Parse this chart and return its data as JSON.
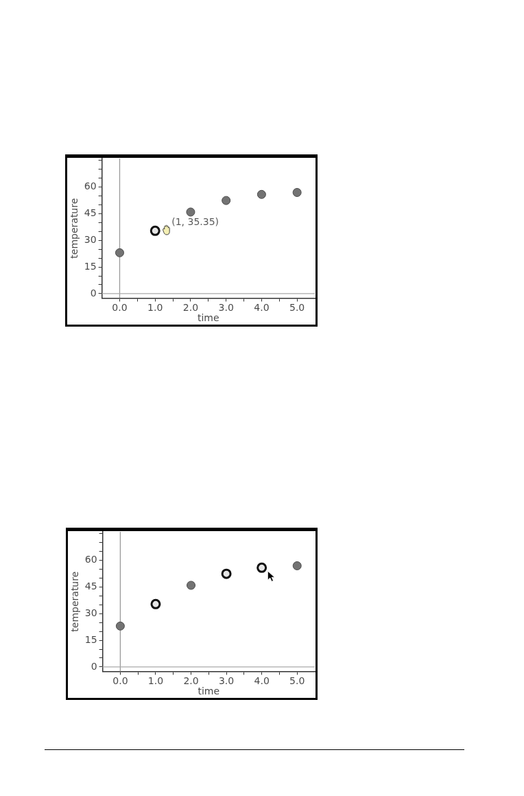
{
  "chart_data": [
    {
      "type": "scatter",
      "xlabel": "time",
      "ylabel": "temperature",
      "x": [
        0,
        1,
        2,
        3,
        4,
        5
      ],
      "values": [
        23,
        35.35,
        45.9,
        52.4,
        55.8,
        56.9
      ],
      "colors": [
        "#737373",
        "#e6e6e6",
        "#737373",
        "#737373",
        "#737373",
        "#737373"
      ],
      "marker": "circle",
      "xlim": [
        -0.5,
        5.5
      ],
      "ylim": [
        -2.5,
        76
      ],
      "xticks": [
        {
          "value": 0,
          "label": "0.0"
        },
        {
          "value": 0.5,
          "label": null
        },
        {
          "value": 1,
          "label": "1.0"
        },
        {
          "value": 1.5,
          "label": null
        },
        {
          "value": 2,
          "label": "2.0"
        },
        {
          "value": 2.5,
          "label": null
        },
        {
          "value": 3,
          "label": "3.0"
        },
        {
          "value": 3.5,
          "label": null
        },
        {
          "value": 4,
          "label": "4.0"
        },
        {
          "value": 4.5,
          "label": null
        },
        {
          "value": 5,
          "label": "5.0"
        }
      ],
      "yticks": [
        0,
        {
          "value": 5,
          "label": null
        },
        {
          "value": 10,
          "label": null
        },
        15,
        {
          "value": 20,
          "label": null
        },
        {
          "value": 25,
          "label": null
        },
        30,
        {
          "value": 35,
          "label": null
        },
        {
          "value": 40,
          "label": null
        },
        45,
        {
          "value": 50,
          "label": null
        },
        {
          "value": 55,
          "label": null
        },
        60,
        {
          "value": 65,
          "label": null
        },
        {
          "value": 70,
          "label": null
        },
        {
          "value": 75,
          "label": null
        }
      ],
      "ref_lines": [
        {
          "axis": "x",
          "value": 0,
          "color": "#999999"
        },
        {
          "axis": "y",
          "value": 0,
          "color": "#aaaaaa"
        }
      ],
      "annotations": [
        {
          "text": "(1, 35.35)",
          "x": 1,
          "y": 35.35
        }
      ]
    },
    {
      "type": "scatter",
      "xlabel": "time",
      "ylabel": "temperature",
      "x": [
        0,
        1,
        2,
        3,
        4,
        5
      ],
      "values": [
        23,
        35.35,
        45.9,
        52.4,
        55.8,
        56.9
      ],
      "colors": [
        "#737373",
        "#e6e6e6",
        "#737373",
        "#e6e6e6",
        "#e6e6e6",
        "#737373"
      ],
      "marker": "circle",
      "xlim": [
        -0.5,
        5.5
      ],
      "ylim": [
        -2.5,
        76
      ],
      "xticks": [
        {
          "value": 0,
          "label": "0.0"
        },
        {
          "value": 0.5,
          "label": null
        },
        {
          "value": 1,
          "label": "1.0"
        },
        {
          "value": 1.5,
          "label": null
        },
        {
          "value": 2,
          "label": "2.0"
        },
        {
          "value": 2.5,
          "label": null
        },
        {
          "value": 3,
          "label": "3.0"
        },
        {
          "value": 3.5,
          "label": null
        },
        {
          "value": 4,
          "label": "4.0"
        },
        {
          "value": 4.5,
          "label": null
        },
        {
          "value": 5,
          "label": "5.0"
        }
      ],
      "yticks": [
        0,
        {
          "value": 5,
          "label": null
        },
        {
          "value": 10,
          "label": null
        },
        15,
        {
          "value": 20,
          "label": null
        },
        {
          "value": 25,
          "label": null
        },
        30,
        {
          "value": 35,
          "label": null
        },
        {
          "value": 40,
          "label": null
        },
        45,
        {
          "value": 50,
          "label": null
        },
        {
          "value": 55,
          "label": null
        },
        60,
        {
          "value": 65,
          "label": null
        },
        {
          "value": 70,
          "label": null
        },
        {
          "value": 75,
          "label": null
        }
      ],
      "ref_lines": [
        {
          "axis": "x",
          "value": 0,
          "color": "#999999"
        },
        {
          "axis": "y",
          "value": 0,
          "color": "#aaaaaa"
        }
      ]
    }
  ]
}
